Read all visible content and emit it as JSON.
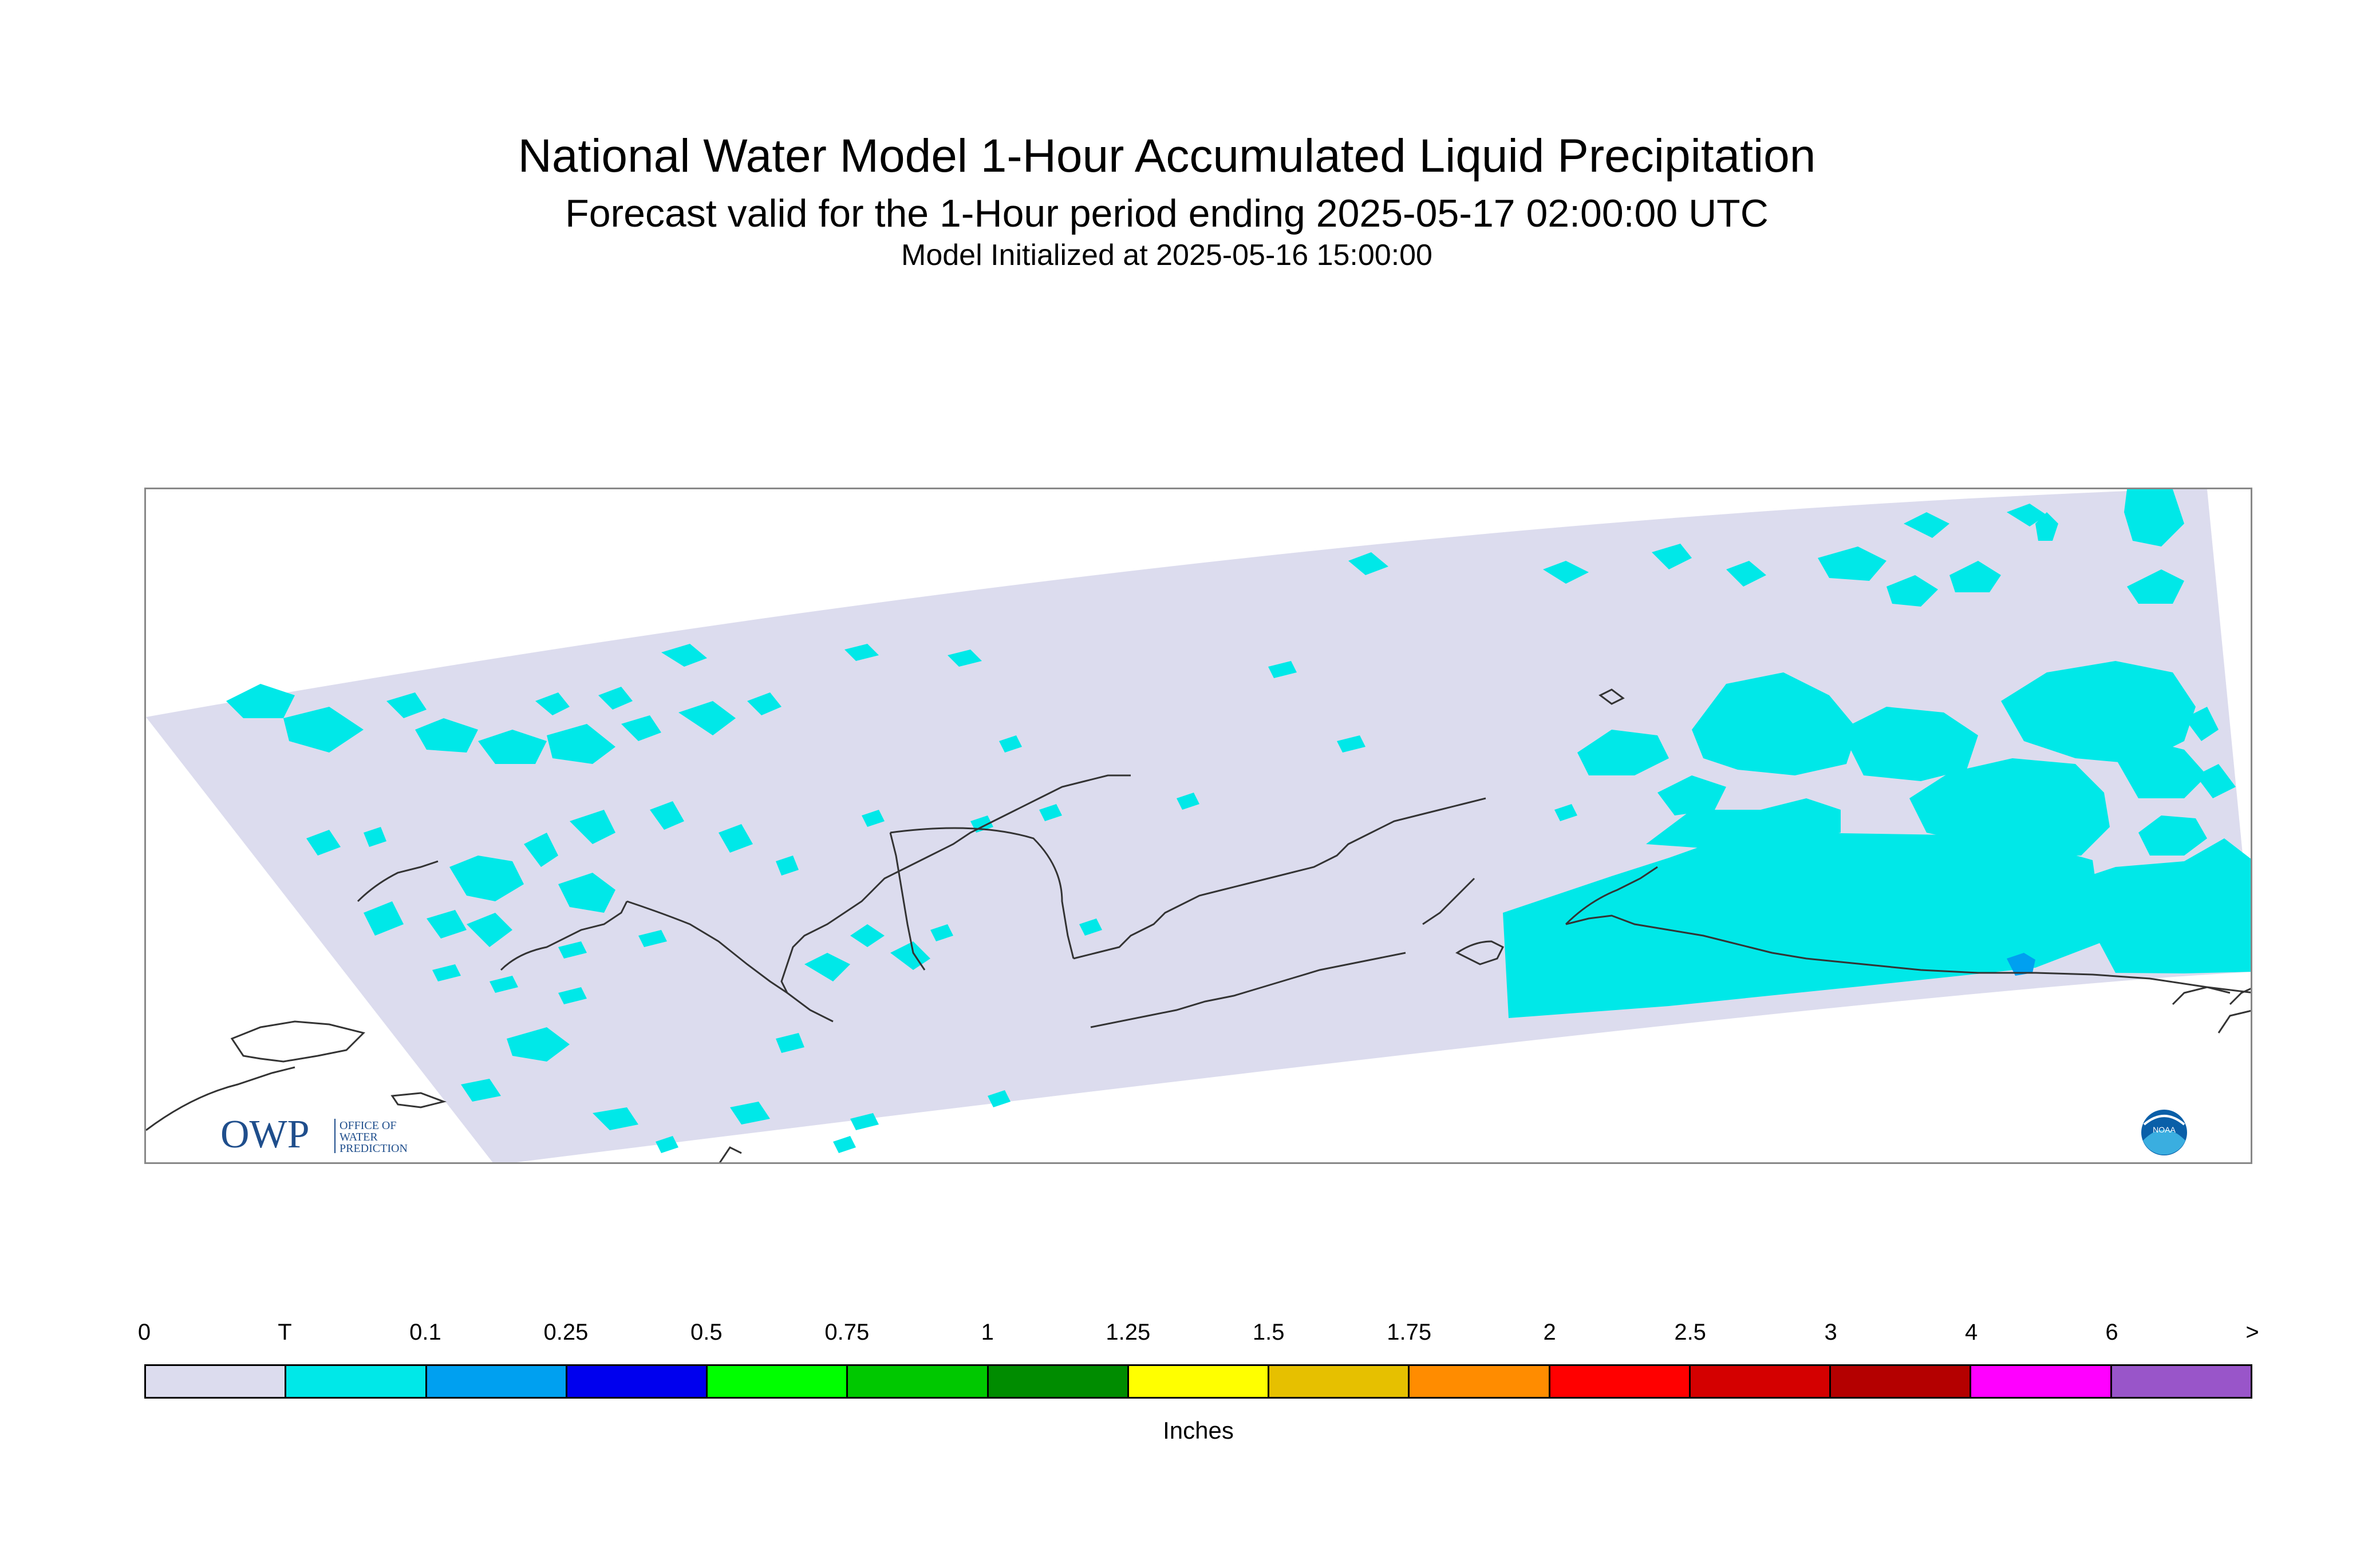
{
  "title": "National Water Model 1-Hour Accumulated Liquid Precipitation",
  "subtitle": "Forecast valid for the 1-Hour period ending 2025-05-17 02:00:00 UTC",
  "init_line": "Model Initialized at 2025-05-16 15:00:00",
  "legend": {
    "labels": [
      "0",
      "T",
      "0.1",
      "0.25",
      "0.5",
      "0.75",
      "1",
      "1.25",
      "1.5",
      "1.75",
      "2",
      "2.5",
      "3",
      "4",
      "6",
      ">"
    ],
    "colors": [
      "#dcdcee",
      "#00e8e8",
      "#00a0f0",
      "#0000ee",
      "#00ff00",
      "#00c800",
      "#008c00",
      "#ffff00",
      "#e6c000",
      "#ff8c00",
      "#ff0000",
      "#d40000",
      "#b40000",
      "#ff00ff",
      "#9955c9"
    ],
    "units": "Inches"
  },
  "map": {
    "domain_color": "#dcdcee",
    "trace_color": "#00e8e8",
    "light_color": "#00a0f0",
    "coast_color": "#333333"
  },
  "logos": {
    "owp_letters": "OWP",
    "owp_line1": "OFFICE OF",
    "owp_line2": "WATER",
    "owp_line3": "PREDICTION",
    "noaa_text": "NOAA",
    "owp_color": "#1f4e8c",
    "noaa_color": "#0a5fa8"
  }
}
